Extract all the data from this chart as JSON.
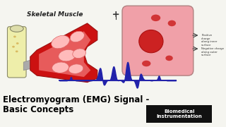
{
  "bg_color": "#f5f5f0",
  "title_line1": "Electromyogram (EMG) Signal -",
  "title_line2": "Basic Concepts",
  "title_color": "#000000",
  "title_fontsize": 8.5,
  "title_fontweight": "bold",
  "badge_text": "Biomedical\nInstrumentation",
  "badge_bg": "#111111",
  "badge_text_color": "#ffffff",
  "badge_fontsize": 5.0,
  "skeletal_label": "Skeletal Muscle",
  "emg_color": "#2222aa",
  "cell_body_color": "#f0a0a8",
  "cell_border_color": "#b08080",
  "cell_nucleus_color": "#cc2222",
  "bone_color": "#eeeeaa",
  "bone_edge_color": "#888866",
  "muscle_color": "#cc1111",
  "muscle_light_color": "#ff9999",
  "muscle_edge_color": "#991111"
}
